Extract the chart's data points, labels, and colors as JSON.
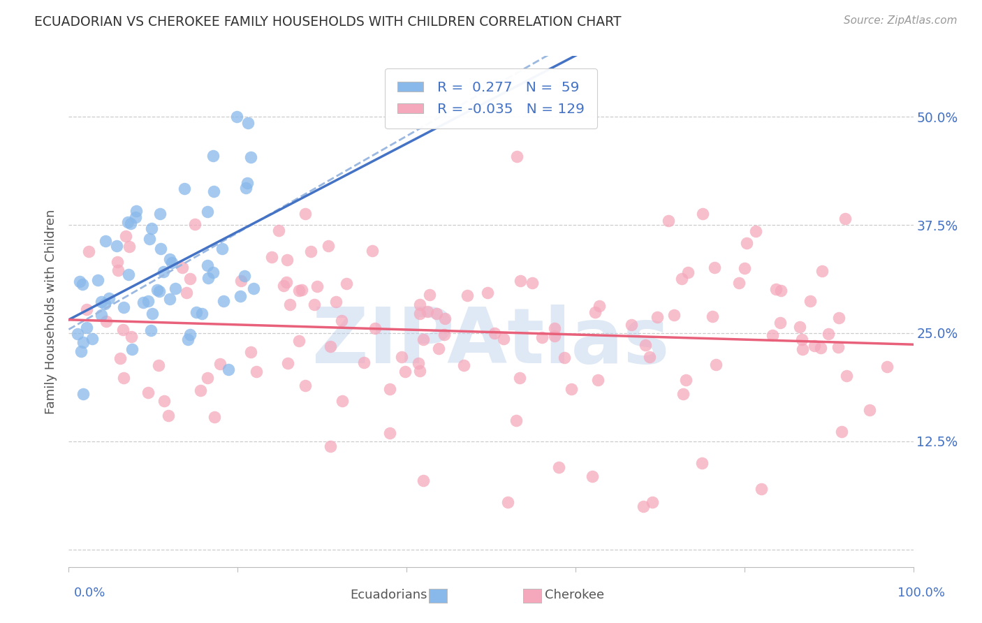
{
  "title": "ECUADORIAN VS CHEROKEE FAMILY HOUSEHOLDS WITH CHILDREN CORRELATION CHART",
  "source_text": "Source: ZipAtlas.com",
  "ylabel": "Family Households with Children",
  "ytick_labels": [
    "",
    "12.5%",
    "25.0%",
    "37.5%",
    "50.0%"
  ],
  "ytick_vals": [
    0.0,
    0.125,
    0.25,
    0.375,
    0.5
  ],
  "xlim": [
    0.0,
    1.0
  ],
  "ylim": [
    -0.02,
    0.57
  ],
  "blue_color": "#89B8EA",
  "pink_color": "#F5A8BC",
  "blue_line_color": "#4472C4",
  "pink_line_color": "#E8607A",
  "blue_dash_color": "#9AB8E0",
  "watermark": "ZIPAtlas",
  "watermark_color": "#B8D0EA",
  "background_color": "#FFFFFF",
  "grid_color": "#CCCCCC",
  "title_color": "#333333",
  "axis_label_color": "#4472C4",
  "legend_text_color": "#4472C4",
  "source_color": "#999999"
}
